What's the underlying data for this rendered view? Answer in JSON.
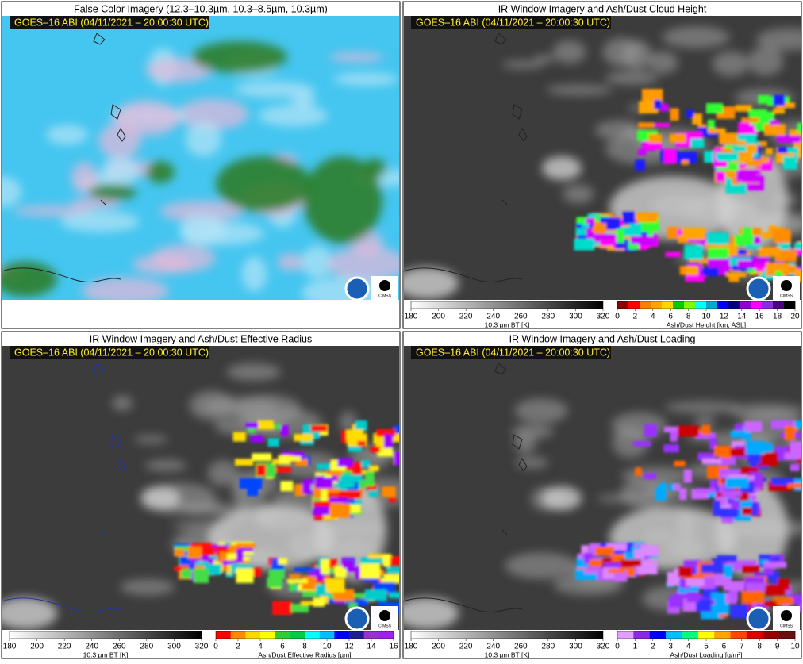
{
  "panels": [
    {
      "title": "False Color Imagery (12.3–10.3µm, 10.3–8.5µm, 10.3µm)",
      "stamp": "GOES–16 ABI (04/11/2021 – 20:00:30 UTC)",
      "logo": "CIMSS",
      "colorbars": []
    },
    {
      "title": "IR Window Imagery and Ash/Dust Cloud Height",
      "stamp": "GOES–16 ABI (04/11/2021 – 20:00:30 UTC)",
      "logo": "CIMSS",
      "colorbars": [
        {
          "ticks": [
            180,
            200,
            220,
            240,
            260,
            280,
            300,
            320
          ],
          "label": "10.3 µm BT [K]"
        },
        {
          "ticks": [
            0,
            2,
            4,
            6,
            8,
            10,
            12,
            14,
            16,
            18,
            20
          ],
          "label": "Ash/Dust Height [km, ASL]"
        }
      ]
    },
    {
      "title": "IR Window Imagery and Ash/Dust Effective Radius",
      "stamp": "GOES–16 ABI (04/11/2021 – 20:00:30 UTC)",
      "logo": "CIMSS",
      "colorbars": [
        {
          "ticks": [
            180,
            200,
            220,
            240,
            260,
            280,
            300,
            320
          ],
          "label": "10.3 µm BT [K]"
        },
        {
          "ticks": [
            0,
            2,
            4,
            6,
            8,
            10,
            12,
            14,
            16
          ],
          "label": "Ash/Dust Effective Radius [µm]"
        }
      ]
    },
    {
      "title": "IR Window Imagery and Ash/Dust Loading",
      "stamp": "GOES–16 ABI (04/11/2021 – 20:00:30 UTC)",
      "logo": "CIMSS",
      "colorbars": [
        {
          "ticks": [
            180,
            200,
            220,
            240,
            260,
            280,
            300,
            320
          ],
          "label": "10.3 µm BT [K]"
        },
        {
          "ticks": [
            0,
            1,
            2,
            3,
            4,
            5,
            6,
            7,
            8,
            9,
            10
          ],
          "label": "Ash/Dust Loading [g/m²]"
        }
      ]
    }
  ]
}
